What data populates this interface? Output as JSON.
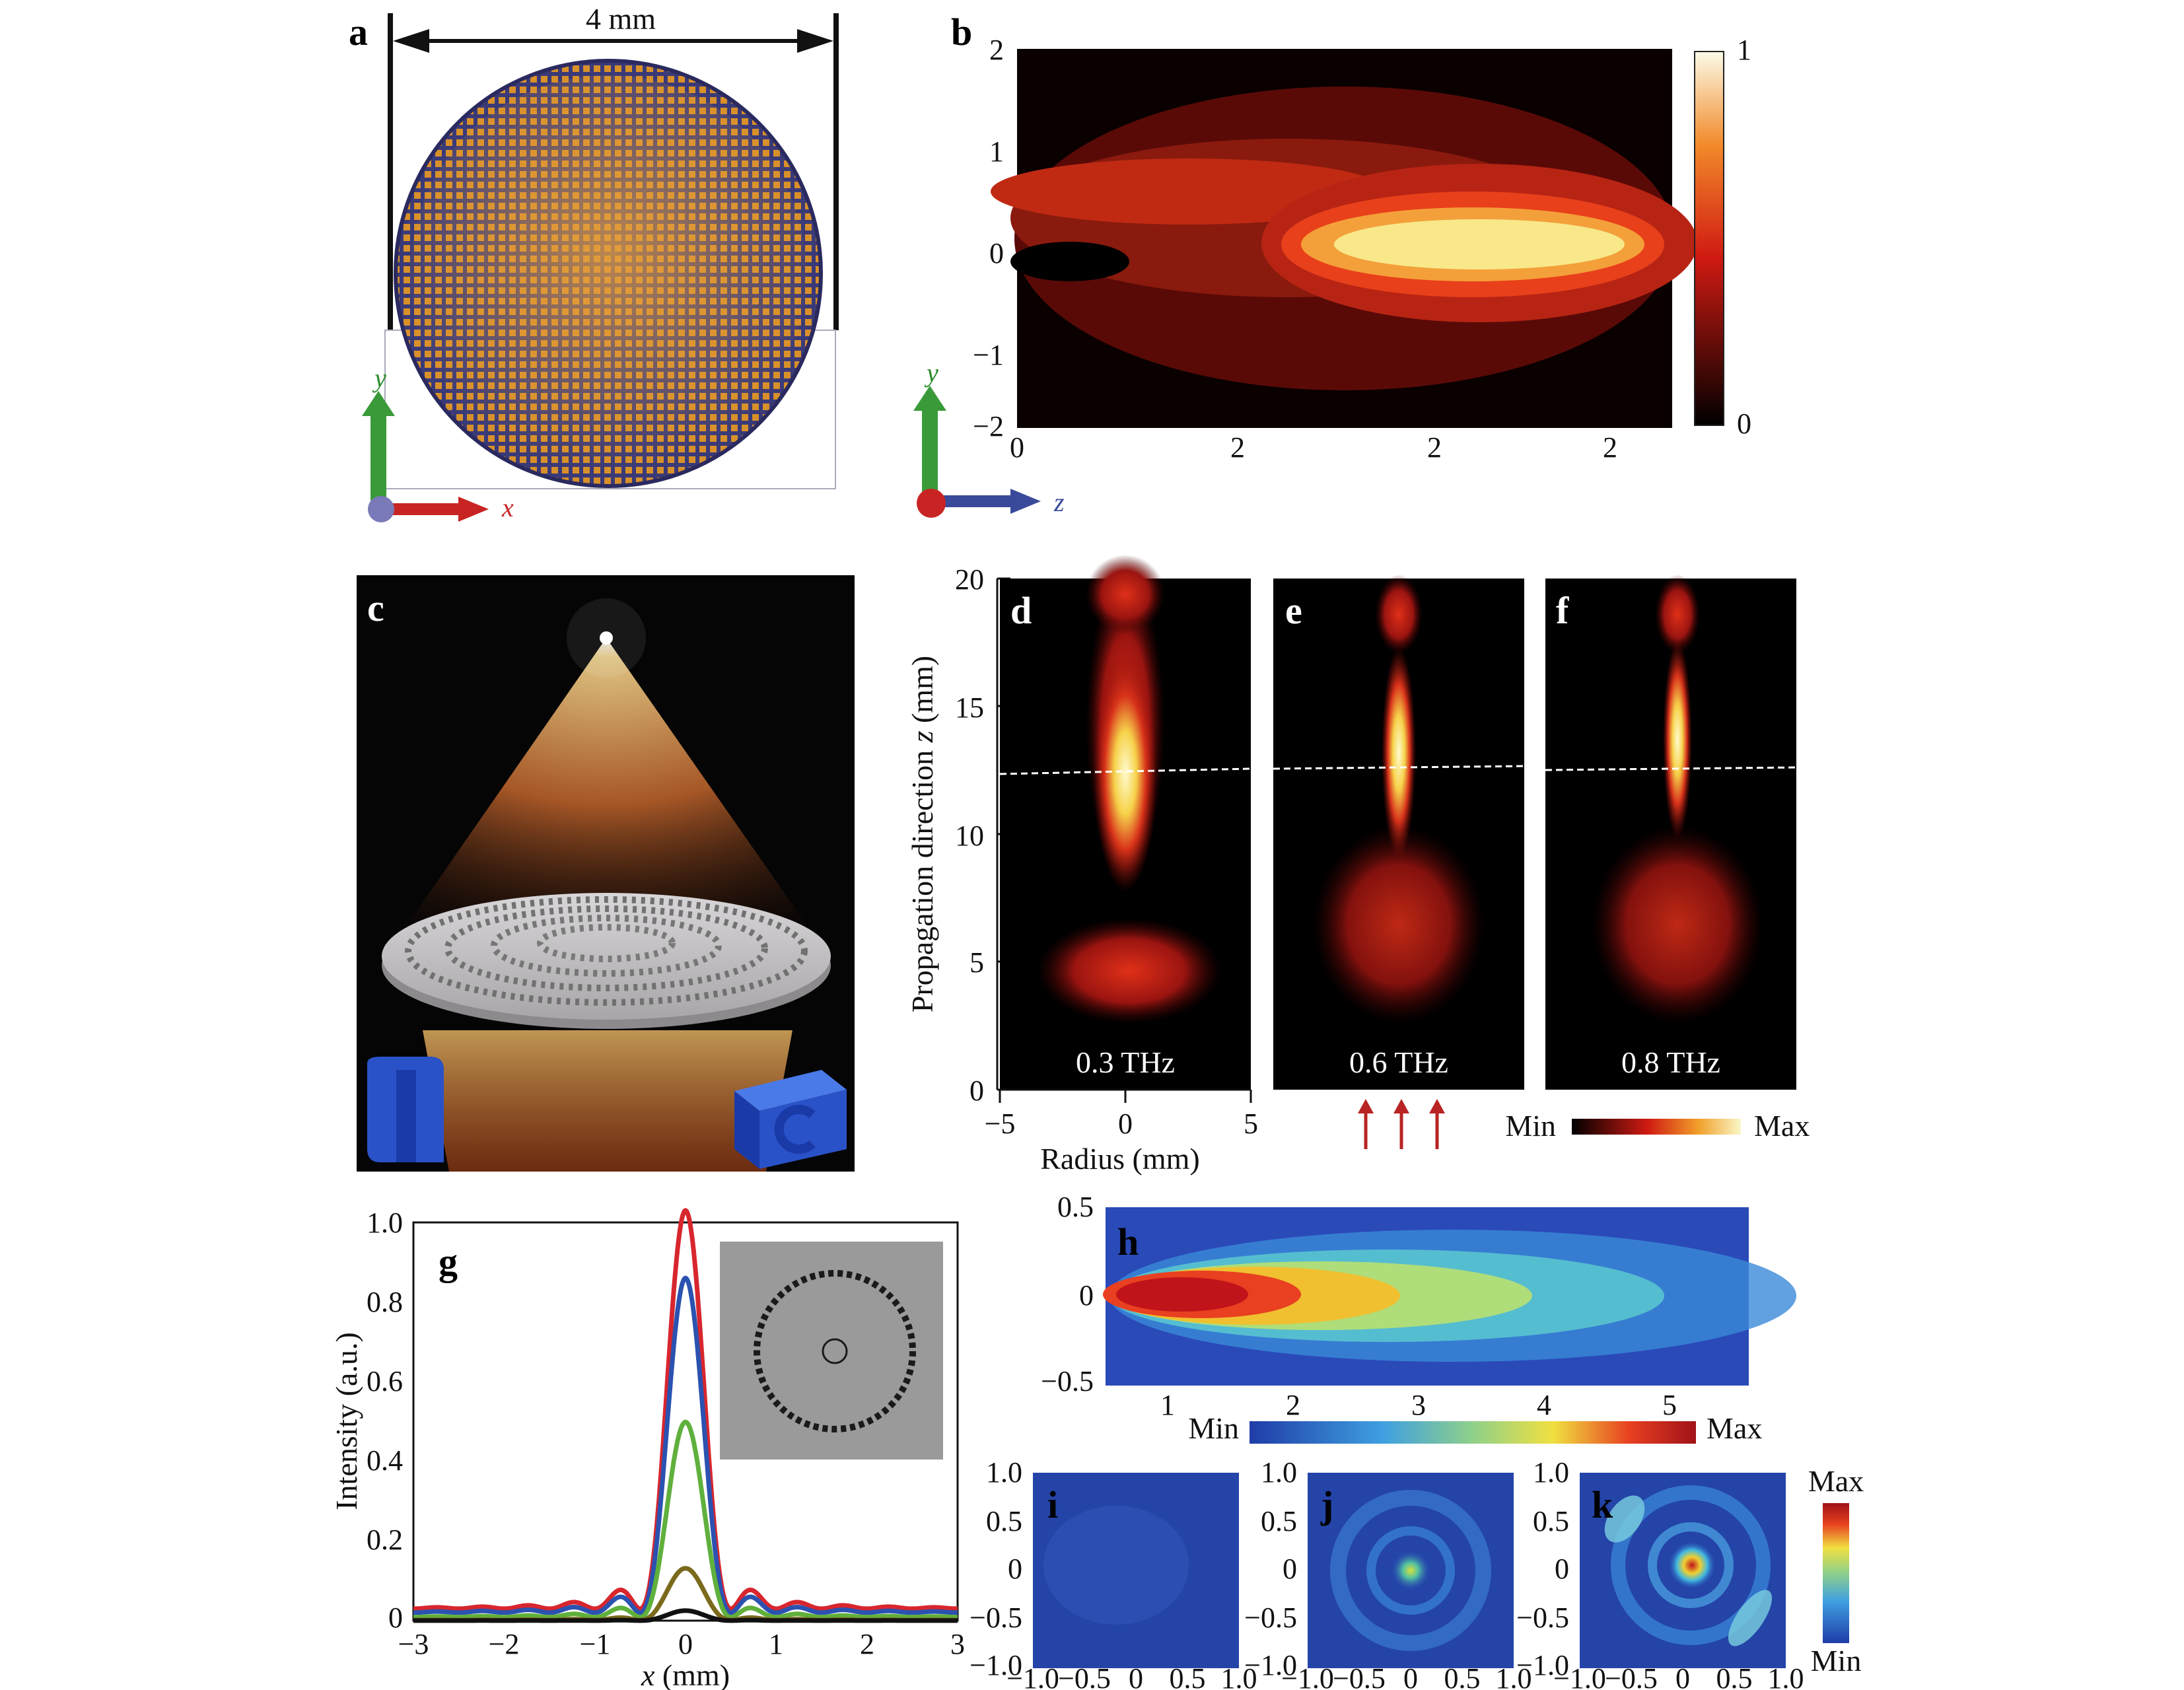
{
  "figure": {
    "panel_letters": [
      "a",
      "b",
      "c",
      "d",
      "e",
      "f",
      "g",
      "h",
      "i",
      "j",
      "k"
    ],
    "a": {
      "dimension_label": "4 mm",
      "axis_y": "y",
      "axis_x": "x"
    },
    "b": {
      "y_ticks": [
        "2",
        "1",
        "0",
        "−1",
        "−2"
      ],
      "x_ticks": [
        "0",
        "2",
        "2",
        "2"
      ],
      "colorbar_ticks": [
        "1",
        "0"
      ],
      "axis_y": "y",
      "axis_z": "z"
    },
    "def": {
      "ylabel_prefix": "Propagation direction ",
      "ylabel_var": "z",
      "ylabel_suffix": " (mm)",
      "y_ticks": [
        "20",
        "15",
        "10",
        "5",
        "0"
      ],
      "x_ticks": [
        "−5",
        "0",
        "5"
      ],
      "xlabel": "Radius (mm)",
      "freq_labels": [
        "0.3 THz",
        "0.6 THz",
        "0.8 THz"
      ],
      "colorbar_min": "Min",
      "colorbar_max": "Max"
    },
    "g": {
      "ylabel": "Intensity (a.u.)",
      "xlabel_var": "x",
      "xlabel_suffix": " (mm)",
      "y_ticks": [
        "1.0",
        "0.8",
        "0.6",
        "0.4",
        "0.2",
        "0"
      ],
      "x_ticks": [
        "−3",
        "−2",
        "−1",
        "0",
        "1",
        "2",
        "3"
      ]
    },
    "h": {
      "y_ticks": [
        "0.5",
        "0",
        "−0.5"
      ],
      "x_ticks": [
        "1",
        "2",
        "3",
        "4",
        "5"
      ],
      "colorbar_min": "Min",
      "colorbar_max": "Max"
    },
    "ijk": {
      "y_ticks": [
        "1.0",
        "0.5",
        "0",
        "−0.5",
        "−1.0"
      ],
      "x_ticks": [
        "−1.0",
        "−0.5",
        "0",
        "0.5",
        "1.0"
      ],
      "colorbar_max": "Max",
      "colorbar_min": "Min"
    }
  },
  "colors": {
    "hot_low": "#000000",
    "hot_mid": "#cc1a10",
    "hot_high": "#f7f5a0",
    "jet_low": "#1e3fa8",
    "jet_high": "#b01218",
    "series": [
      "#d8262e",
      "#2b52b0",
      "#5fb03c",
      "#7a6a1c",
      "#111111"
    ]
  },
  "chart_data": [
    {
      "type": "line",
      "panel": "g",
      "xlim": [
        -3,
        3
      ],
      "ylim": [
        0,
        1.0
      ],
      "series": [
        {
          "color": "#d8262e",
          "peak": 1.0
        },
        {
          "color": "#2b52b0",
          "peak": 0.84
        },
        {
          "color": "#5fb03c",
          "peak": 0.49
        },
        {
          "color": "#7a6a1c",
          "peak": 0.13
        },
        {
          "color": "#111111",
          "peak": 0.025
        }
      ]
    }
  ]
}
